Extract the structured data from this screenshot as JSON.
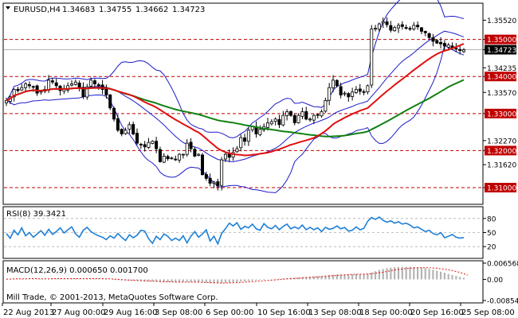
{
  "header": {
    "symbol": "EURUSD,H4",
    "open": "1.34683",
    "high": "1.34755",
    "low": "1.34662",
    "close": "1.34723"
  },
  "colors": {
    "background": "#ffffff",
    "frame": "#000000",
    "candle": "#000000",
    "bollinger": "#1c1cc8",
    "ma_fast": "#e01010",
    "ma_slow": "#108010",
    "level_line": "#c00000",
    "rsi": "#1e7fd6",
    "macd_hist": "#b4b4b4",
    "macd_signal": "#e01010",
    "current_price_bg": "#000000",
    "current_price_fg": "#ffffff"
  },
  "price_axis": {
    "ticks": [
      "1.35520",
      "1.35000",
      "1.34723",
      "1.34235",
      "1.34000",
      "1.33570",
      "1.33000",
      "1.32270",
      "1.32000",
      "1.31620",
      "1.31000"
    ],
    "current": "1.34723"
  },
  "levels": [
    "1.35000",
    "1.34000",
    "1.33000",
    "1.32000",
    "1.31000"
  ],
  "rsi": {
    "label": "RSI(8) 39.3421",
    "ticks": [
      "80",
      "50",
      "20"
    ],
    "current": 39.3421
  },
  "macd": {
    "label": "MACD(12,26,9) 0.000650 0.001700",
    "ticks": [
      "0.006568",
      "0.00",
      "-0.008540"
    ],
    "main": 0.00065,
    "signal": 0.0017
  },
  "copyright": "Mill Trade, © 2001-2013, MetaQuotes Software Corp.",
  "time_axis": [
    "22 Aug 2013",
    "27 Aug 00:00",
    "29 Aug 16:00",
    "3 Sep 08:00",
    "6 Sep 00:00",
    "10 Sep 16:00",
    "13 Sep 08:00",
    "18 Sep 00:00",
    "20 Sep 16:00",
    "25 Sep 08:00"
  ],
  "chart_data": [
    {
      "type": "candlestick",
      "title": "EURUSD,H4",
      "ylim": [
        1.307,
        1.3585
      ],
      "x": [
        "22 Aug 2013",
        "27 Aug 00:00",
        "29 Aug 16:00",
        "3 Sep 08:00",
        "6 Sep 00:00",
        "10 Sep 16:00",
        "13 Sep 08:00",
        "18 Sep 00:00",
        "20 Sep 16:00",
        "25 Sep 08:00"
      ],
      "close_series": [
        1.3335,
        1.3345,
        1.3365,
        1.3362,
        1.337,
        1.338,
        1.3375,
        1.3372,
        1.3355,
        1.336,
        1.3365,
        1.339,
        1.3385,
        1.3375,
        1.3362,
        1.3365,
        1.3375,
        1.338,
        1.3385,
        1.337,
        1.3345,
        1.3372,
        1.339,
        1.338,
        1.3375,
        1.3365,
        1.335,
        1.3315,
        1.3285,
        1.3255,
        1.3245,
        1.3255,
        1.327,
        1.3245,
        1.322,
        1.3215,
        1.321,
        1.3222,
        1.3225,
        1.3205,
        1.317,
        1.3185,
        1.3178,
        1.318,
        1.3175,
        1.319,
        1.319,
        1.322,
        1.3205,
        1.3185,
        1.319,
        1.3135,
        1.3125,
        1.3112,
        1.3115,
        1.3105,
        1.3175,
        1.319,
        1.3182,
        1.3195,
        1.3205,
        1.3235,
        1.3225,
        1.3255,
        1.3265,
        1.3245,
        1.3258,
        1.3265,
        1.3275,
        1.3278,
        1.3285,
        1.327,
        1.3295,
        1.3305,
        1.3295,
        1.3275,
        1.3295,
        1.3305,
        1.3285,
        1.3285,
        1.3295,
        1.3295,
        1.3305,
        1.3335,
        1.337,
        1.339,
        1.3375,
        1.335,
        1.3355,
        1.3345,
        1.3358,
        1.3365,
        1.336,
        1.3358,
        1.3375,
        1.3528,
        1.353,
        1.3542,
        1.3548,
        1.354,
        1.3525,
        1.3532,
        1.3538,
        1.3535,
        1.353,
        1.3528,
        1.3538,
        1.3534,
        1.3522,
        1.3518,
        1.3505,
        1.3495,
        1.349,
        1.3488,
        1.3482,
        1.3485,
        1.3478,
        1.3475,
        1.347,
        1.3472
      ]
    },
    {
      "type": "line",
      "title": "RSI(8) 39.3421",
      "ylim": [
        0,
        100
      ],
      "ticks": [
        80,
        50,
        20
      ],
      "values": [
        48,
        38,
        55,
        45,
        60,
        43,
        50,
        40,
        47,
        54,
        44,
        57,
        46,
        52,
        60,
        49,
        56,
        62,
        47,
        40,
        55,
        61,
        52,
        47,
        43,
        40,
        35,
        43,
        38,
        48,
        40,
        33,
        45,
        39,
        44,
        55,
        53,
        37,
        27,
        42,
        35,
        47,
        42,
        33,
        38,
        33,
        43,
        28,
        42,
        52,
        40,
        47,
        56,
        32,
        42,
        26,
        48,
        58,
        70,
        64,
        71,
        57,
        63,
        60,
        68,
        58,
        55,
        69,
        61,
        58,
        65,
        56,
        63,
        68,
        58,
        62,
        58,
        66,
        56,
        61,
        56,
        60,
        52,
        61,
        57,
        59,
        64,
        58,
        61,
        53,
        55,
        62,
        56,
        59,
        74,
        82,
        78,
        83,
        76,
        72,
        75,
        70,
        73,
        68,
        70,
        66,
        60,
        62,
        57,
        52,
        55,
        48,
        45,
        50,
        39,
        42,
        46,
        40,
        38,
        39.3
      ]
    },
    {
      "type": "bar",
      "title": "MACD(12,26,9) 0.000650 0.001700",
      "ylim": [
        -0.00854,
        0.006568
      ],
      "ticks": [
        0.006568,
        0,
        -0.00854
      ],
      "histogram": [
        0.0001,
        0.0001,
        0.0002,
        0.0002,
        0.0002,
        0.0003,
        0.0003,
        0.0003,
        0.0002,
        0.0002,
        0.0002,
        0.0003,
        0.0003,
        0.0003,
        0.0003,
        0.0003,
        0.0003,
        0.0004,
        0.0004,
        0.0003,
        0.0002,
        0.0003,
        0.0003,
        0.0003,
        0.0003,
        0.0002,
        0.0001,
        0.0,
        -0.0002,
        -0.0003,
        -0.0004,
        -0.0004,
        -0.0004,
        -0.0005,
        -0.0006,
        -0.0007,
        -0.0008,
        -0.0008,
        -0.0008,
        -0.0009,
        -0.001,
        -0.0011,
        -0.0011,
        -0.0011,
        -0.0011,
        -0.0011,
        -0.0011,
        -0.001,
        -0.0011,
        -0.0011,
        -0.0012,
        -0.0013,
        -0.0014,
        -0.0015,
        -0.0016,
        -0.0016,
        -0.0015,
        -0.0014,
        -0.0013,
        -0.0012,
        -0.0011,
        -0.0009,
        -0.0008,
        -0.0006,
        -0.0005,
        -0.0004,
        -0.0003,
        -0.0002,
        0.0,
        0.0001,
        0.0002,
        0.0003,
        0.0004,
        0.0005,
        0.0006,
        0.0007,
        0.0008,
        0.0009,
        0.001,
        0.0011,
        0.0012,
        0.0013,
        0.0014,
        0.0016,
        0.0018,
        0.0019,
        0.002,
        0.002,
        0.002,
        0.0021,
        0.0021,
        0.0022,
        0.0022,
        0.0022,
        0.0023,
        0.0028,
        0.0033,
        0.0038,
        0.0042,
        0.0045,
        0.0047,
        0.0049,
        0.005,
        0.0051,
        0.0051,
        0.0051,
        0.005,
        0.0049,
        0.0047,
        0.0045,
        0.0042,
        0.0039,
        0.0035,
        0.0031,
        0.0027,
        0.0022,
        0.0018,
        0.0014,
        0.001,
        0.00065
      ],
      "signal": [
        0.0001,
        0.0001,
        0.0002,
        0.0002,
        0.0002,
        0.0002,
        0.0003,
        0.0003,
        0.0003,
        0.0002,
        0.0002,
        0.0002,
        0.0003,
        0.0003,
        0.0003,
        0.0003,
        0.0003,
        0.0003,
        0.0003,
        0.0003,
        0.0003,
        0.0003,
        0.0003,
        0.0003,
        0.0003,
        0.0003,
        0.0002,
        0.0002,
        0.0001,
        0.0,
        -0.0001,
        -0.0002,
        -0.0003,
        -0.0004,
        -0.0004,
        -0.0005,
        -0.0006,
        -0.0007,
        -0.0007,
        -0.0008,
        -0.0009,
        -0.0009,
        -0.001,
        -0.001,
        -0.0011,
        -0.0011,
        -0.0011,
        -0.0011,
        -0.0011,
        -0.0011,
        -0.0011,
        -0.0012,
        -0.0012,
        -0.0013,
        -0.0014,
        -0.0014,
        -0.0015,
        -0.0015,
        -0.0014,
        -0.0014,
        -0.0013,
        -0.0012,
        -0.0011,
        -0.001,
        -0.0009,
        -0.0008,
        -0.0007,
        -0.0005,
        -0.0004,
        -0.0003,
        -0.0002,
        -0.0001,
        0.0001,
        0.0002,
        0.0003,
        0.0004,
        0.0005,
        0.0006,
        0.0007,
        0.0008,
        0.0009,
        0.001,
        0.0011,
        0.0012,
        0.0014,
        0.0015,
        0.0016,
        0.0017,
        0.0018,
        0.0019,
        0.002,
        0.002,
        0.0021,
        0.0021,
        0.0022,
        0.0023,
        0.0025,
        0.0027,
        0.0029,
        0.0032,
        0.0035,
        0.0038,
        0.004,
        0.0042,
        0.0044,
        0.0045,
        0.0046,
        0.0047,
        0.0047,
        0.0047,
        0.0047,
        0.0046,
        0.0045,
        0.0043,
        0.0041,
        0.0039,
        0.0036,
        0.0032,
        0.0028,
        0.0023,
        0.0017
      ]
    }
  ]
}
